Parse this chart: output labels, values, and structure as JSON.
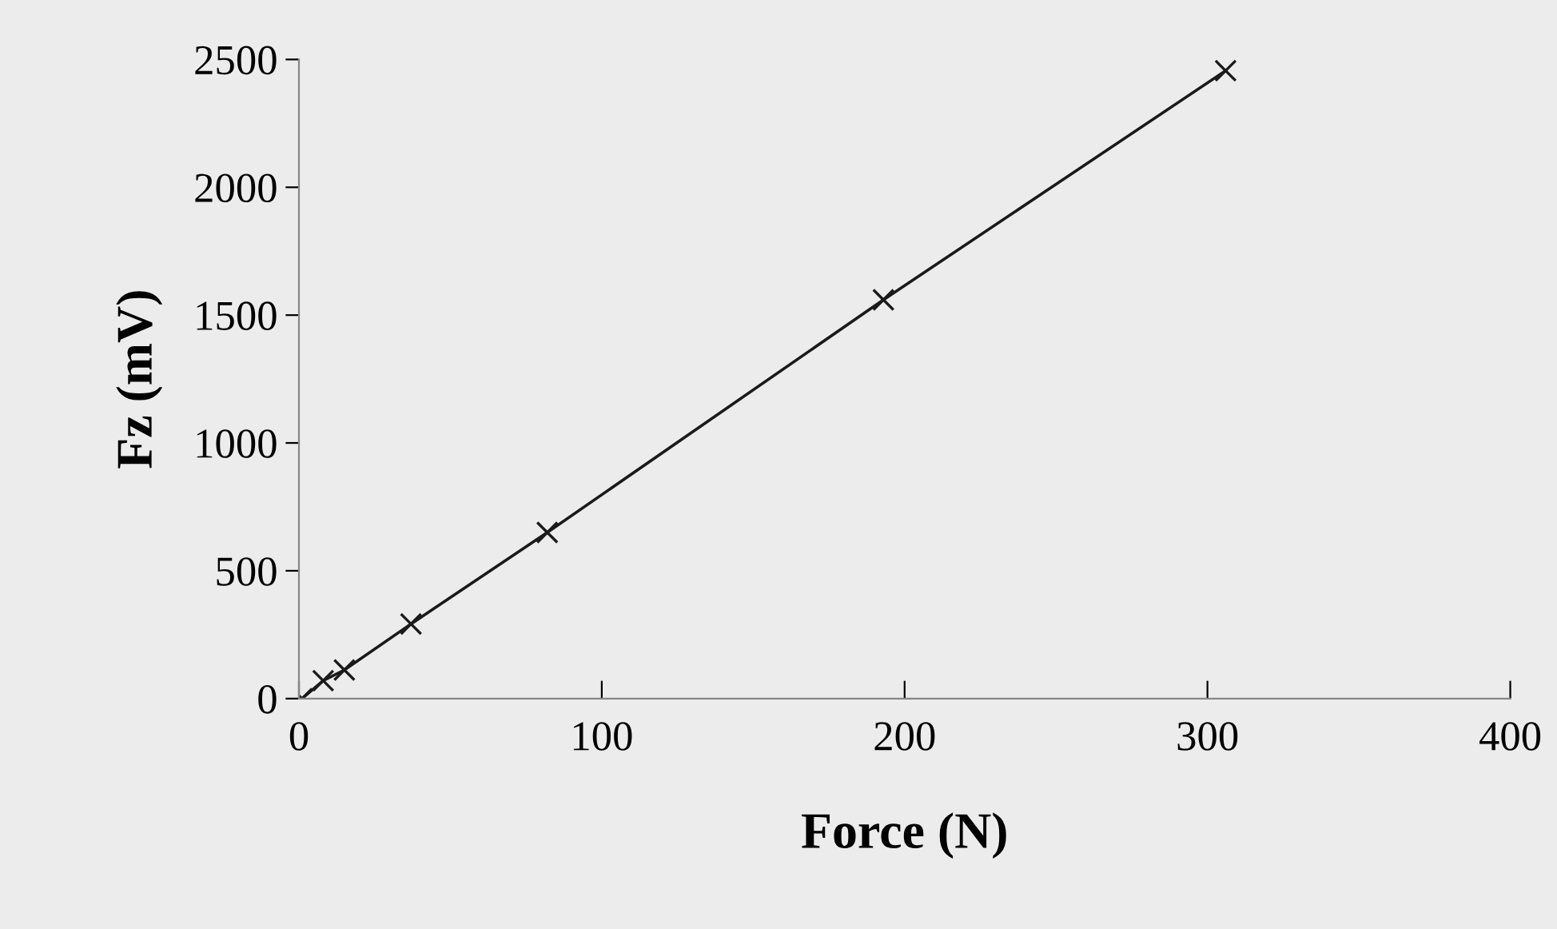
{
  "chart_data": {
    "type": "line",
    "xlabel": "Force (N)",
    "ylabel": "Fz (mV)",
    "x": [
      1,
      8,
      15,
      37,
      82,
      193,
      306
    ],
    "series": [
      {
        "color": "#1a1a1a",
        "values": [
          0,
          70,
          112,
          292,
          650,
          1560,
          2456
        ]
      }
    ],
    "xlim": [
      0,
      400
    ],
    "ylim": [
      0,
      2500
    ],
    "xticks": [
      0,
      100,
      200,
      300,
      400
    ],
    "yticks": [
      0,
      500,
      1000,
      1500,
      2000,
      2500
    ],
    "grid": false,
    "legend": false,
    "marker": "cross",
    "line_style": "solid"
  }
}
